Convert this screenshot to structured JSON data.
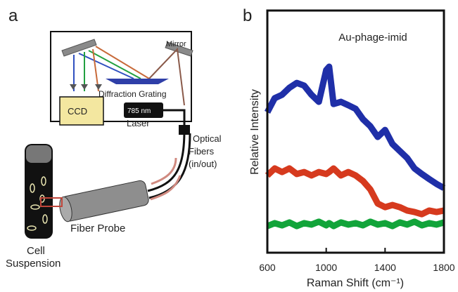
{
  "panel_a": {
    "panel_label": "a",
    "labels": {
      "mirror": "Mirror",
      "grating": "Diffraction Grating",
      "ccd": "CCD",
      "laser_wavelength": "785 nm",
      "laser": "Laser",
      "fibers_1": "Optical",
      "fibers_2": "Fibers",
      "fibers_3": "(in/out)",
      "probe": "Fiber Probe",
      "cell_1": "Cell",
      "cell_2": "Suspension"
    }
  },
  "chart_data": {
    "type": "line",
    "panel_label": "b",
    "annotation": "Au-phage-imid",
    "xlabel": "Raman Shift (cm⁻¹)",
    "ylabel": "Relative Intensity",
    "xlim": [
      600,
      1800
    ],
    "xticks": [
      600,
      1000,
      1400,
      1800
    ],
    "ylim": [
      0,
      100
    ],
    "x": [
      600,
      650,
      700,
      750,
      800,
      850,
      900,
      950,
      1000,
      1020,
      1050,
      1100,
      1150,
      1200,
      1250,
      1300,
      1350,
      1400,
      1450,
      1500,
      1550,
      1600,
      1650,
      1700,
      1750,
      1800
    ],
    "series": [
      {
        "color": "#1f2fa8",
        "values": [
          58.0,
          63.8,
          65.2,
          68.1,
          70.1,
          69.0,
          65.2,
          62.3,
          75.4,
          76.8,
          61.4,
          62.3,
          60.9,
          59.4,
          55.1,
          52.2,
          47.8,
          50.7,
          44.9,
          42.0,
          39.1,
          34.8,
          32.5,
          30.4,
          28.4,
          26.7
        ]
      },
      {
        "color": "#d63a1e",
        "values": [
          31.9,
          34.8,
          33.3,
          34.8,
          32.5,
          33.3,
          31.9,
          33.3,
          32.5,
          33.3,
          34.8,
          31.9,
          33.3,
          31.9,
          29.6,
          26.1,
          20.3,
          18.8,
          19.7,
          18.8,
          17.4,
          16.8,
          15.9,
          17.4,
          16.8,
          17.4
        ]
      },
      {
        "color": "#12a43a",
        "values": [
          11.0,
          12.2,
          11.3,
          12.5,
          11.0,
          12.2,
          11.6,
          12.8,
          11.3,
          12.2,
          11.0,
          12.5,
          11.6,
          12.2,
          11.3,
          12.8,
          11.6,
          12.2,
          11.0,
          12.5,
          11.6,
          12.8,
          11.3,
          12.2,
          11.6,
          12.5
        ]
      }
    ]
  }
}
